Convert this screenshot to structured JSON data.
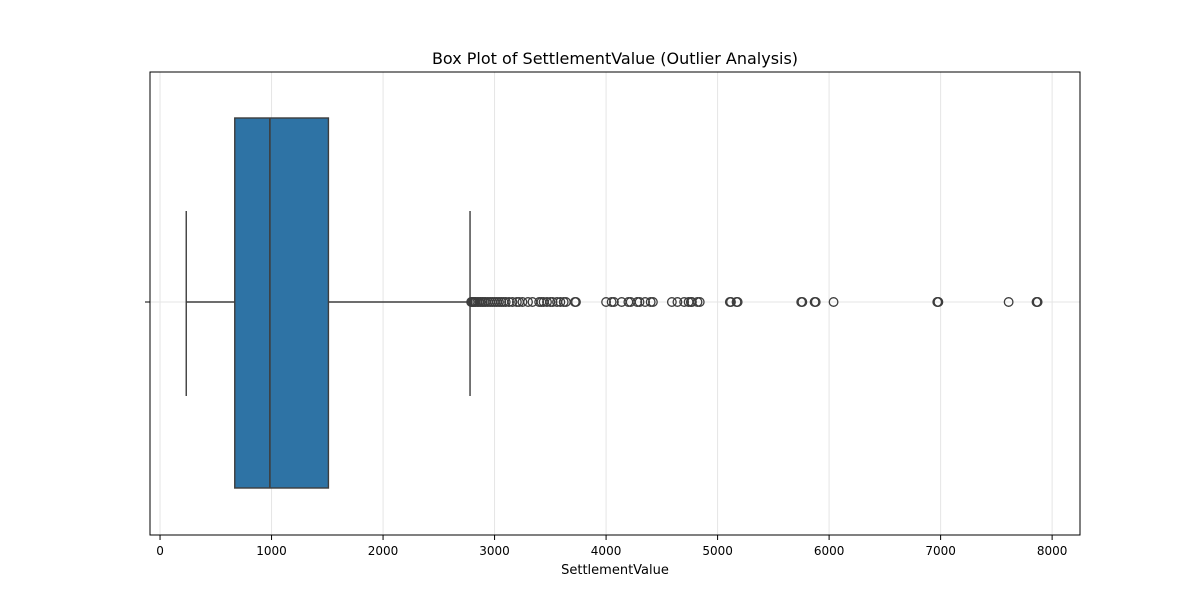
{
  "chart_data": {
    "type": "box",
    "title": "Box Plot of SettlementValue (Outlier Analysis)",
    "xlabel": "SettlementValue",
    "ylabel": "",
    "xlim": [
      -90,
      8250
    ],
    "xticks": [
      0,
      1000,
      2000,
      3000,
      4000,
      5000,
      6000,
      7000,
      8000
    ],
    "grid": true,
    "orientation": "horizontal",
    "box_color": "#2e73a5",
    "line_color": "#3d3d3d",
    "stats": {
      "whisker_low": 235,
      "q1": 670,
      "median": 985,
      "q3": 1510,
      "whisker_high": 2780
    },
    "outliers": [
      2790,
      2800,
      2810,
      2820,
      2830,
      2845,
      2860,
      2875,
      2890,
      2905,
      2920,
      2940,
      2960,
      2980,
      3000,
      3020,
      3040,
      3060,
      3080,
      3100,
      3130,
      3160,
      3200,
      3220,
      3250,
      3300,
      3340,
      3400,
      3420,
      3440,
      3470,
      3500,
      3520,
      3560,
      3590,
      3620,
      3640,
      3720,
      3730,
      4000,
      4050,
      4070,
      4140,
      4200,
      4220,
      4280,
      4300,
      4350,
      4400,
      4420,
      4590,
      4640,
      4700,
      4740,
      4760,
      4770,
      4820,
      4840,
      5110,
      5120,
      5170,
      5180,
      5750,
      5760,
      5870,
      5880,
      6040,
      6970,
      6975,
      6980,
      7610,
      7860,
      7865,
      7870
    ]
  }
}
